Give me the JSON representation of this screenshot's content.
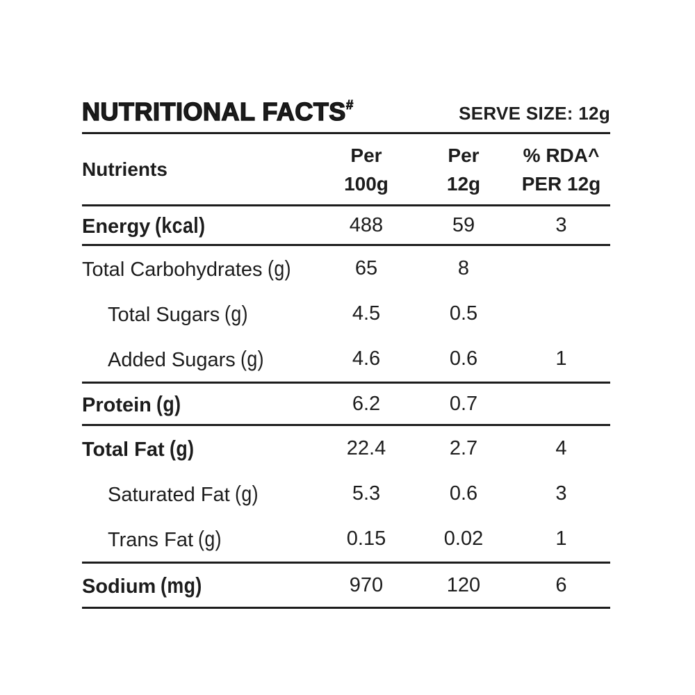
{
  "page": {
    "background_color": "#ffffff",
    "text_color": "#1c1c1c",
    "rule_color": "#1c1c1c"
  },
  "header": {
    "title": "NUTRITIONAL FACTS",
    "title_mark": "#",
    "serve_size": "SERVE SIZE: 12g"
  },
  "table": {
    "columns": {
      "nutrients": "Nutrients",
      "per100": {
        "line1": "Per",
        "line2": "100g"
      },
      "per12": {
        "line1": "Per",
        "line2": "12g"
      },
      "rda": {
        "line1": "% RDA^",
        "line2": "PER 12g"
      }
    },
    "rows": [
      {
        "label": "Energy",
        "unit": "(kcal)",
        "per100": "488",
        "per12": "59",
        "rda": "3"
      },
      {
        "label": "Total Carbohydrates",
        "unit": "(g)",
        "per100": "65",
        "per12": "8",
        "rda": ""
      },
      {
        "label": "Total Sugars",
        "unit": "(g)",
        "per100": "4.5",
        "per12": "0.5",
        "rda": ""
      },
      {
        "label": "Added Sugars",
        "unit": "(g)",
        "per100": "4.6",
        "per12": "0.6",
        "rda": "1"
      },
      {
        "label": "Protein",
        "unit": "(g)",
        "per100": "6.2",
        "per12": "0.7",
        "rda": ""
      },
      {
        "label": "Total Fat",
        "unit": "(g)",
        "per100": "22.4",
        "per12": "2.7",
        "rda": "4"
      },
      {
        "label": "Saturated Fat",
        "unit": "(g)",
        "per100": "5.3",
        "per12": "0.6",
        "rda": "3"
      },
      {
        "label": "Trans Fat",
        "unit": "(g)",
        "per100": "0.15",
        "per12": "0.02",
        "rda": "1"
      },
      {
        "label": "Sodium",
        "unit": "(mg)",
        "per100": "970",
        "per12": "120",
        "rda": "6"
      }
    ]
  }
}
